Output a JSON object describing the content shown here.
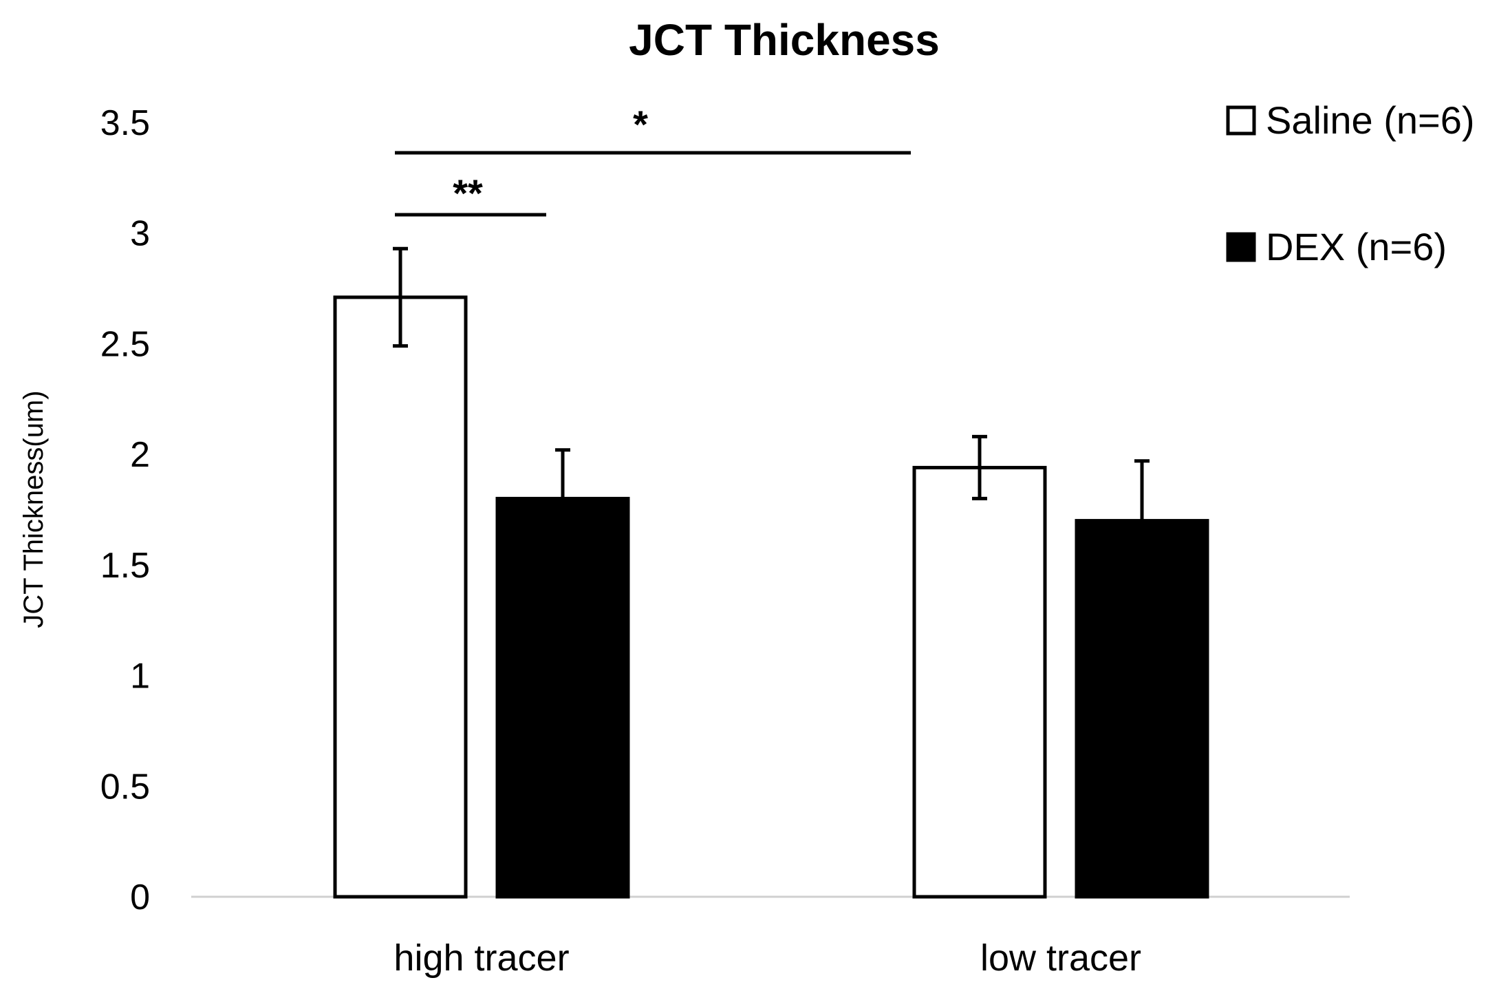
{
  "chart_data": {
    "type": "bar",
    "title": "JCT Thickness",
    "xlabel": "",
    "ylabel": "JCT Thickness(um)",
    "ylim": [
      0,
      3.5
    ],
    "yticks": [
      "0",
      "0.5",
      "1",
      "1.5",
      "2",
      "2.5",
      "3",
      "3.5"
    ],
    "categories": [
      "high tracer",
      "low tracer"
    ],
    "series": [
      {
        "name": "Saline (n=6)",
        "values": [
          2.71,
          1.94
        ],
        "errors": [
          0.22,
          0.14
        ],
        "fill": "#ffffff",
        "stroke": "#000000"
      },
      {
        "name": "DEX (n=6)",
        "values": [
          1.8,
          1.7
        ],
        "errors": [
          0.22,
          0.27
        ],
        "fill": "#000000",
        "stroke": "#000000"
      }
    ],
    "legend_position": "top-right",
    "grid": false,
    "significance": [
      {
        "label": "**",
        "between": "high tracer Saline vs high tracer DEX"
      },
      {
        "label": "*",
        "between": "high tracer Saline vs low tracer Saline"
      }
    ]
  }
}
